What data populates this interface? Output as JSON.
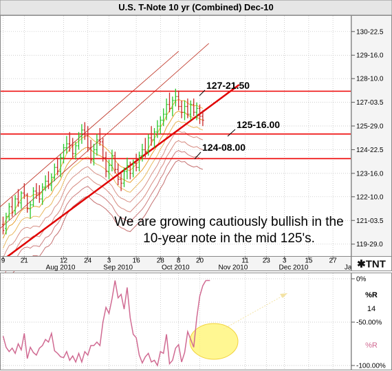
{
  "chart_data": [
    {
      "type": "ohlc",
      "title": "U.S. T-Note 10 yr (Combined) Dec-10",
      "y_axis": {
        "ticks": [
          "130-22.5",
          "129-16.0",
          "128-10.0",
          "127-03.5",
          "125-29.0",
          "124-22.5",
          "123-16.0",
          "122-10.0",
          "121-03.5",
          "119-29.0"
        ],
        "tick_values": [
          130.703,
          129.5,
          128.3125,
          127.109,
          125.906,
          124.703,
          123.5,
          122.3125,
          121.109,
          119.906
        ],
        "range": [
          119.3,
          131.5
        ]
      },
      "x_axis": {
        "day_ticks": [
          "9",
          "21",
          "12",
          "24",
          "3",
          "16",
          "28",
          "8",
          "20",
          "11",
          "23",
          "3",
          "15",
          "27"
        ],
        "day_tick_idx": [
          0,
          7,
          20,
          28,
          35,
          44,
          52,
          58,
          65,
          80,
          87,
          93,
          101,
          109
        ],
        "month_labels": [
          "Aug 2010",
          "Sep 2010",
          "Oct 2010",
          "Nov 2010",
          "Dec 2010",
          "Ja"
        ],
        "month_label_idx": [
          19,
          38,
          57,
          76,
          96,
          114
        ]
      },
      "bars": [
        [
          120.9,
          121.3,
          120.4,
          120.6
        ],
        [
          120.7,
          121.5,
          120.4,
          121.3
        ],
        [
          121.3,
          122.0,
          121.1,
          121.8
        ],
        [
          121.8,
          122.3,
          121.3,
          121.5
        ],
        [
          121.6,
          122.4,
          121.4,
          122.2
        ],
        [
          122.2,
          122.7,
          121.8,
          122.0
        ],
        [
          122.0,
          122.6,
          121.7,
          122.5
        ],
        [
          122.5,
          123.0,
          122.2,
          122.4
        ],
        [
          122.4,
          122.5,
          121.5,
          121.7
        ],
        [
          121.7,
          122.1,
          121.2,
          121.9
        ],
        [
          121.9,
          122.8,
          121.8,
          122.6
        ],
        [
          122.6,
          123.0,
          122.2,
          122.5
        ],
        [
          122.5,
          122.9,
          122.0,
          122.2
        ],
        [
          122.2,
          123.0,
          121.9,
          122.8
        ],
        [
          122.8,
          123.4,
          122.6,
          123.1
        ],
        [
          123.1,
          123.6,
          122.7,
          122.9
        ],
        [
          122.9,
          123.5,
          122.6,
          123.3
        ],
        [
          123.3,
          124.0,
          123.1,
          123.8
        ],
        [
          123.8,
          124.3,
          123.4,
          123.6
        ],
        [
          123.6,
          124.5,
          123.3,
          124.3
        ],
        [
          124.3,
          125.0,
          124.0,
          124.8
        ],
        [
          124.8,
          125.4,
          124.5,
          125.0
        ],
        [
          125.0,
          125.6,
          124.6,
          124.9
        ],
        [
          124.9,
          125.3,
          124.3,
          124.5
        ],
        [
          124.5,
          125.1,
          124.2,
          124.9
        ],
        [
          124.9,
          125.6,
          124.7,
          125.4
        ],
        [
          125.4,
          126.0,
          125.0,
          125.7
        ],
        [
          125.7,
          126.1,
          125.2,
          125.4
        ],
        [
          125.4,
          125.9,
          124.6,
          124.8
        ],
        [
          124.8,
          125.2,
          124.0,
          124.2
        ],
        [
          124.2,
          125.0,
          123.9,
          124.7
        ],
        [
          124.7,
          125.5,
          124.4,
          125.2
        ],
        [
          125.2,
          125.8,
          124.9,
          125.1
        ],
        [
          125.1,
          125.3,
          124.1,
          124.3
        ],
        [
          124.3,
          124.6,
          123.3,
          123.6
        ],
        [
          123.6,
          124.2,
          123.2,
          123.9
        ],
        [
          123.9,
          124.7,
          123.6,
          124.4
        ],
        [
          124.4,
          124.6,
          123.5,
          123.7
        ],
        [
          123.7,
          124.0,
          122.9,
          123.2
        ],
        [
          123.2,
          123.6,
          122.6,
          123.0
        ],
        [
          123.0,
          123.8,
          122.8,
          123.6
        ],
        [
          123.6,
          124.3,
          123.2,
          123.9
        ],
        [
          123.9,
          124.1,
          123.2,
          123.5
        ],
        [
          123.5,
          124.2,
          123.3,
          124.0
        ],
        [
          124.0,
          124.5,
          123.6,
          123.8
        ],
        [
          123.8,
          124.6,
          123.6,
          124.4
        ],
        [
          124.4,
          125.0,
          124.1,
          124.7
        ],
        [
          124.7,
          125.3,
          124.3,
          124.6
        ],
        [
          124.6,
          125.5,
          124.4,
          125.3
        ],
        [
          125.3,
          125.9,
          124.9,
          125.2
        ],
        [
          125.2,
          125.8,
          124.8,
          125.6
        ],
        [
          125.6,
          126.2,
          125.3,
          125.9
        ],
        [
          125.9,
          126.4,
          125.5,
          126.2
        ],
        [
          126.2,
          126.8,
          125.9,
          126.5
        ],
        [
          126.5,
          127.3,
          126.2,
          127.0
        ],
        [
          127.0,
          127.6,
          126.6,
          126.8
        ],
        [
          126.8,
          127.4,
          126.4,
          127.2
        ],
        [
          127.2,
          127.8,
          126.9,
          127.4
        ],
        [
          127.4,
          127.7,
          126.7,
          126.9
        ],
        [
          126.9,
          127.2,
          126.3,
          126.6
        ],
        [
          126.6,
          127.2,
          126.2,
          126.9
        ],
        [
          126.9,
          127.3,
          126.3,
          126.5
        ],
        [
          126.5,
          127.2,
          126.2,
          127.0
        ],
        [
          127.0,
          127.3,
          126.4,
          126.6
        ],
        [
          126.6,
          127.1,
          126.2,
          126.8
        ],
        [
          126.8,
          127.0,
          126.0,
          126.4
        ],
        [
          126.4,
          126.7,
          125.9,
          126.2
        ]
      ],
      "moving_averages": [
        {
          "offset": 0.2,
          "color": "#f2ae3c"
        },
        {
          "offset": -0.4,
          "color": "#e8a030"
        },
        {
          "offset": -0.9,
          "color": "#e9b860"
        },
        {
          "offset": -1.4,
          "color": "#d79086"
        },
        {
          "offset": -1.9,
          "color": "#d68a80"
        },
        {
          "offset": -2.4,
          "color": "#cc7c7c"
        },
        {
          "offset": -2.9,
          "color": "#c46f6f"
        }
      ],
      "horizontal_lines": [
        {
          "value": 127.672,
          "label": "127-21.50",
          "color": "#ee0000"
        },
        {
          "value": 125.5,
          "label": "125-16.00",
          "color": "#ee0000"
        },
        {
          "value": 124.25,
          "label": "124-08.00",
          "color": "#ee0000"
        }
      ],
      "trend_lines": [
        {
          "from": [
            -1,
            119.0
          ],
          "to": [
            78,
            128.0
          ],
          "color": "#e00000",
          "width": 2.5
        },
        {
          "from": [
            -1,
            121.8
          ],
          "to": [
            58,
            129.7
          ],
          "color": "#c0392b",
          "width": 0.9
        },
        {
          "from": [
            -1,
            120.7
          ],
          "to": [
            68,
            130.1
          ],
          "color": "#c0392b",
          "width": 0.9
        }
      ],
      "annotation_text": [
        "We are growing cautiously bullish in the",
        "10-year note in the mid 125's."
      ]
    },
    {
      "type": "line",
      "indicator": "%R",
      "period": "14",
      "series_label": "%R",
      "y_ticks": [
        "-100.00%",
        "-50.00%",
        "0%"
      ],
      "y_tick_values": [
        -100,
        -50,
        0
      ],
      "range": [
        0,
        -100
      ],
      "values": [
        -66,
        -79,
        -84,
        -80,
        -86,
        -75,
        -82,
        -63,
        -92,
        -79,
        -85,
        -88,
        -80,
        -77,
        -70,
        -73,
        -63,
        -83,
        -86,
        -90,
        -91,
        -84,
        -94,
        -89,
        -96,
        -86,
        -96,
        -84,
        -88,
        -77,
        -77,
        -73,
        -77,
        -50,
        -33,
        -40,
        -23,
        -2,
        -22,
        -18,
        -35,
        -10,
        -45,
        -64,
        -68,
        -88,
        -97,
        -90,
        -86,
        -96,
        -94,
        -100,
        -84,
        -86,
        -64,
        -98,
        -94,
        -80,
        -76,
        -96,
        -85,
        -61,
        -70,
        -79,
        -45,
        -20,
        -8,
        -2
      ]
    }
  ]
}
